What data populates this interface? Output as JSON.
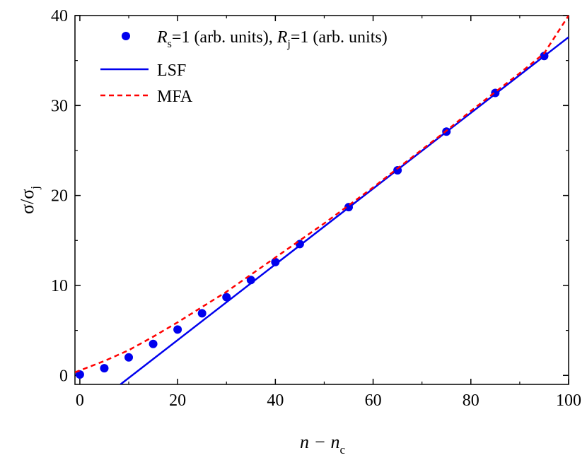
{
  "chart_data": {
    "type": "scatter",
    "xlabel": {
      "main": "n − n",
      "sub": "c"
    },
    "ylabel": {
      "main": "σ/σ",
      "sub": "j"
    },
    "xlim": [
      -1,
      100
    ],
    "ylim": [
      -1,
      40
    ],
    "x_ticks": [
      0,
      20,
      40,
      60,
      80,
      100
    ],
    "y_ticks": [
      0,
      10,
      20,
      30,
      40
    ],
    "grid": false,
    "legend_position": "top-left",
    "series": [
      {
        "name": "R_s=1 (arb. units), R_j=1 (arb. units)",
        "legend": {
          "r1": "R",
          "r1_sub": "s",
          "mid": "=1 (arb. units), ",
          "r2": "R",
          "r2_sub": "j",
          "tail": "=1 (arb. units)"
        },
        "kind": "points",
        "color": "#0000ee",
        "x": [
          0,
          5,
          10,
          15,
          20,
          25,
          30,
          35,
          40,
          45,
          55,
          65,
          75,
          85,
          95
        ],
        "y": [
          0.1,
          0.8,
          2.0,
          3.5,
          5.1,
          6.9,
          8.7,
          10.6,
          12.6,
          14.6,
          18.7,
          22.8,
          27.1,
          31.4,
          35.5
        ]
      },
      {
        "name": "LSF",
        "kind": "line",
        "style": "solid",
        "color": "#0000ee",
        "x": [
          8.3,
          100
        ],
        "y": [
          -1,
          37.6
        ]
      },
      {
        "name": "MFA",
        "kind": "line",
        "style": "dashed",
        "color": "#ff0000",
        "x": [
          -1,
          0,
          5,
          10,
          15,
          20,
          25,
          30,
          35,
          40,
          45,
          50,
          55,
          60,
          65,
          70,
          75,
          80,
          85,
          90,
          95,
          100
        ],
        "y": [
          0.35,
          0.55,
          1.6,
          2.8,
          4.3,
          5.9,
          7.6,
          9.3,
          11.2,
          13.1,
          15.0,
          16.9,
          18.9,
          20.9,
          23.0,
          25.1,
          27.2,
          29.4,
          31.5,
          33.6,
          35.8,
          40.0
        ]
      }
    ]
  }
}
